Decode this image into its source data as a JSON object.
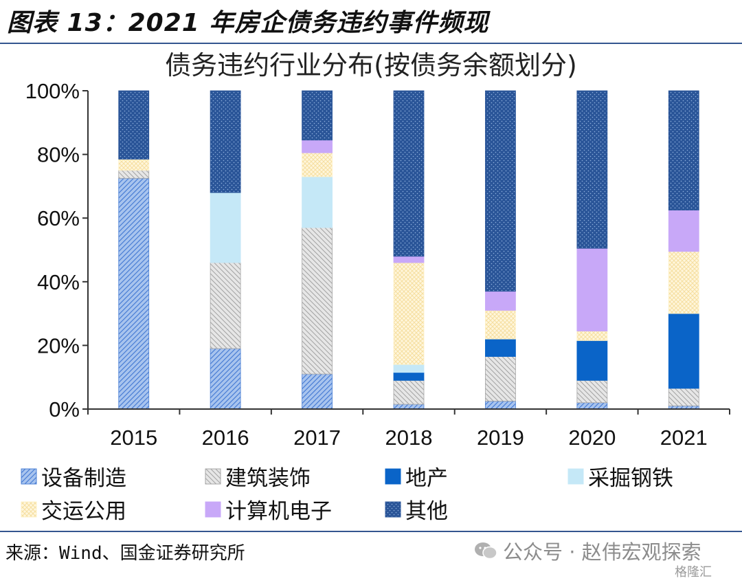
{
  "header": {
    "title": "图表 13：2021 年房企债务违约事件频现"
  },
  "source": "来源：Wind、国金证券研究所",
  "watermark": {
    "text": "公众号 · 赵伟宏观探索",
    "corner": "格隆汇"
  },
  "chart_data": {
    "type": "bar",
    "stacked": true,
    "title": "债务违约行业分布(按债务余额划分)",
    "xlabel": "",
    "ylabel": "",
    "ylim": [
      0,
      100
    ],
    "yticks": [
      "0%",
      "20%",
      "40%",
      "60%",
      "80%",
      "100%"
    ],
    "categories": [
      "2015",
      "2016",
      "2017",
      "2018",
      "2019",
      "2020",
      "2021"
    ],
    "legend_position": "bottom",
    "series": [
      {
        "name": "设备制造",
        "color": "#4a7fd4",
        "pattern": "hatch-blue",
        "values": [
          72.5,
          19,
          11,
          1.5,
          2.5,
          2,
          1
        ]
      },
      {
        "name": "建筑装饰",
        "color": "#a6a6a6",
        "pattern": "hatch-gray",
        "values": [
          2.5,
          27,
          46,
          7.5,
          14,
          7,
          5.5
        ]
      },
      {
        "name": "地产",
        "color": "#0a64c8",
        "pattern": "solid-blue",
        "values": [
          0,
          0,
          0,
          2.5,
          5.5,
          12.5,
          23.5
        ]
      },
      {
        "name": "采掘钢铁",
        "color": "#c5e8f7",
        "pattern": "solid-lightblue",
        "values": [
          0,
          22,
          16,
          2.5,
          0,
          0,
          0
        ]
      },
      {
        "name": "交运公用",
        "color": "#fff1c6",
        "pattern": "lattice-cream",
        "values": [
          3.5,
          0,
          7.5,
          32,
          9,
          3,
          19.5
        ]
      },
      {
        "name": "计算机电子",
        "color": "#c8a8f8",
        "pattern": "solid-purple",
        "values": [
          0,
          0,
          4,
          2,
          6,
          26,
          13
        ]
      },
      {
        "name": "其他",
        "color": "#2a5598",
        "pattern": "dots-navy",
        "values": [
          21.5,
          32,
          15.5,
          52,
          63,
          49.5,
          37.5
        ]
      }
    ]
  }
}
